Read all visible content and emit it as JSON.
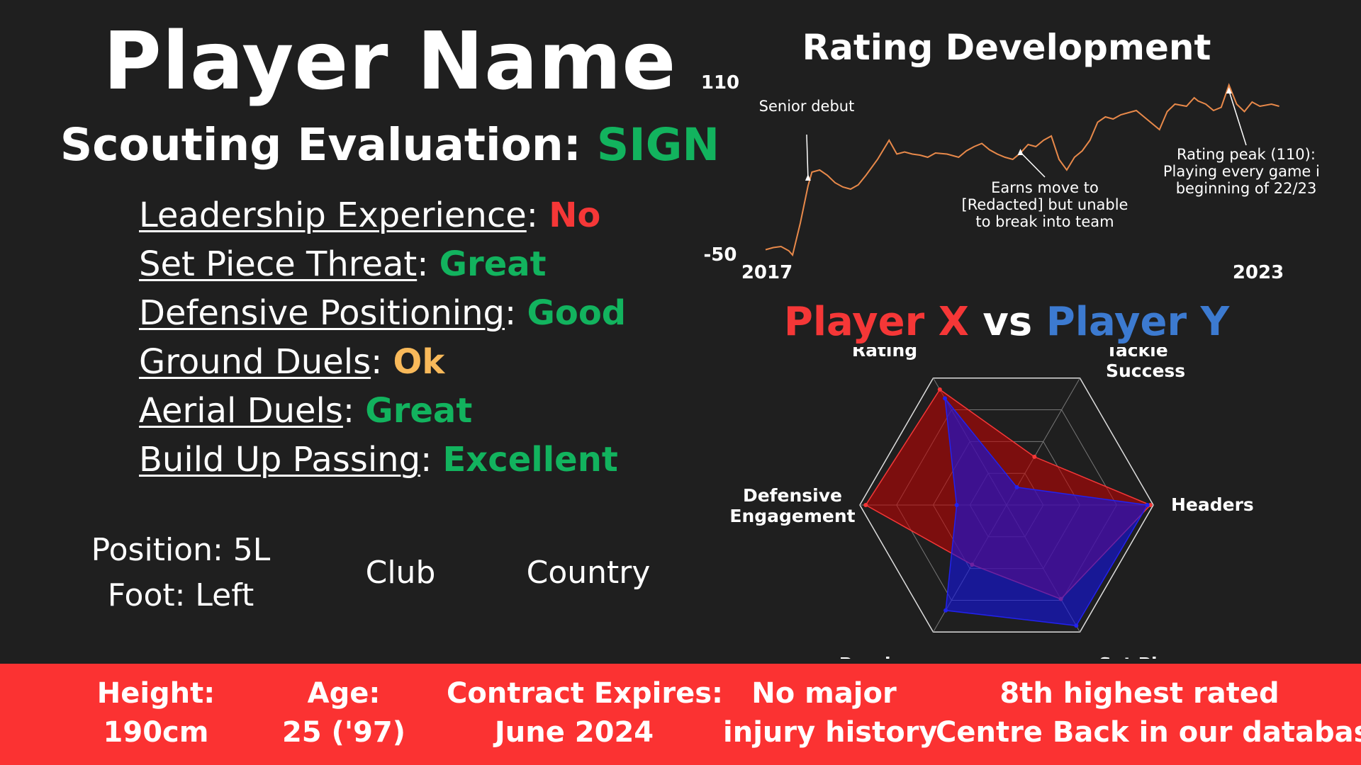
{
  "header": {
    "player_name": "Player Name",
    "evaluation_label": "Scouting Evaluation:",
    "evaluation_value": "SIGN"
  },
  "attributes": [
    {
      "name": "Leadership Experience",
      "value": "No",
      "color": "#f53737"
    },
    {
      "name": "Set Piece Threat",
      "value": "Great",
      "color": "#12b35e"
    },
    {
      "name": "Defensive Positioning",
      "value": "Good",
      "color": "#12b35e"
    },
    {
      "name": "Ground Duels",
      "value": "Ok",
      "color": "#f8b95a"
    },
    {
      "name": "Aerial Duels",
      "value": "Great",
      "color": "#12b35e"
    },
    {
      "name": "Build Up Passing",
      "value": "Excellent",
      "color": "#12b35e"
    }
  ],
  "profile": {
    "position": "Position: 5L",
    "foot": "Foot: Left",
    "club": "Club",
    "country": "Country"
  },
  "facts": [
    {
      "line1": "Height:",
      "line2": "190cm"
    },
    {
      "line1": "Age:",
      "line2": "25 ('97)"
    },
    {
      "line1": "Contract Expires:",
      "line2": "June 2024"
    },
    {
      "line1": "No major",
      "line2": "injury history"
    },
    {
      "line1": "8th highest rated",
      "line2": "Centre Back in our database"
    }
  ],
  "colors": {
    "background": "#1f1f1f",
    "bar": "#fb3232",
    "positive": "#12b35e",
    "negative": "#f53737",
    "neutral": "#f8b95a",
    "line": "#e8894a",
    "player_x": "#f53737",
    "player_y": "#3c7ad0"
  },
  "chart_data": [
    {
      "type": "line",
      "title": "Rating Development",
      "xlabel": "",
      "ylabel": "",
      "x_tick_labels": [
        "2017",
        "2023"
      ],
      "y_tick_labels": [
        "110",
        "-50"
      ],
      "xlim": [
        2017.0,
        2023.7
      ],
      "ylim": [
        -50,
        110
      ],
      "grid": false,
      "x": [
        2017.0,
        2017.1,
        2017.2,
        2017.3,
        2017.35,
        2017.45,
        2017.55,
        2017.6,
        2017.7,
        2017.8,
        2017.9,
        2018.0,
        2018.1,
        2018.2,
        2018.3,
        2018.45,
        2018.6,
        2018.7,
        2018.8,
        2018.9,
        2019.0,
        2019.1,
        2019.2,
        2019.35,
        2019.5,
        2019.6,
        2019.7,
        2019.8,
        2019.9,
        2020.0,
        2020.1,
        2020.2,
        2020.3,
        2020.4,
        2020.5,
        2020.6,
        2020.7,
        2020.8,
        2020.9,
        2021.0,
        2021.1,
        2021.2,
        2021.3,
        2021.4,
        2021.5,
        2021.6,
        2021.7,
        2021.8,
        2021.9,
        2022.0,
        2022.1,
        2022.2,
        2022.3,
        2022.45,
        2022.55,
        2022.6,
        2022.7,
        2022.8,
        2022.9,
        2023.0,
        2023.1,
        2023.2,
        2023.3,
        2023.4,
        2023.55,
        2023.65
      ],
      "y": [
        -45,
        -43,
        -42,
        -46,
        -50,
        -20,
        15,
        28,
        30,
        25,
        18,
        14,
        12,
        16,
        25,
        40,
        58,
        45,
        47,
        45,
        44,
        42,
        46,
        45,
        42,
        48,
        52,
        55,
        49,
        45,
        42,
        40,
        46,
        54,
        52,
        58,
        62,
        40,
        30,
        42,
        48,
        58,
        75,
        80,
        78,
        82,
        84,
        86,
        80,
        74,
        68,
        85,
        92,
        90,
        98,
        95,
        92,
        86,
        89,
        110,
        92,
        85,
        94,
        90,
        92,
        90
      ],
      "annotations": [
        {
          "text": [
            "Senior debut"
          ],
          "x": 2017.55,
          "y": 28
        },
        {
          "text": [
            "Earns move to",
            "[Redacted] but unable",
            "to break into team"
          ],
          "x": 2020.3,
          "y": 52
        },
        {
          "text": [
            "Rating peak (110):",
            "Playing every game in",
            "beginning of 22/23"
          ],
          "x": 2023.0,
          "y": 110
        }
      ]
    },
    {
      "type": "radar",
      "title_parts": [
        {
          "text": "Player X",
          "color": "#f53737"
        },
        {
          "text": " vs ",
          "color": "#ffffff"
        },
        {
          "text": "Player Y",
          "color": "#3c7ad0"
        }
      ],
      "axes": [
        "Rating",
        "Tackle Success",
        "Headers",
        "Set Pieces",
        "Passing",
        "Defensive Engagement"
      ],
      "axis_labels": [
        [
          "Rating"
        ],
        [
          "Tackle",
          "Success"
        ],
        [
          "Headers"
        ],
        [
          "Set Pieces"
        ],
        [
          "Passing"
        ],
        [
          "Defensive",
          "Engagement"
        ]
      ],
      "range": [
        0,
        100
      ],
      "rings": 4,
      "series": [
        {
          "name": "Player X",
          "values": [
            91,
            38,
            98,
            74,
            47,
            96
          ],
          "color": "#f53737",
          "fill": "rgba(200,0,0,0.55)"
        },
        {
          "name": "Player Y",
          "values": [
            84,
            14,
            96,
            95,
            83,
            34
          ],
          "color": "#2222ee",
          "fill": "rgba(20,20,230,0.6)"
        }
      ]
    }
  ]
}
